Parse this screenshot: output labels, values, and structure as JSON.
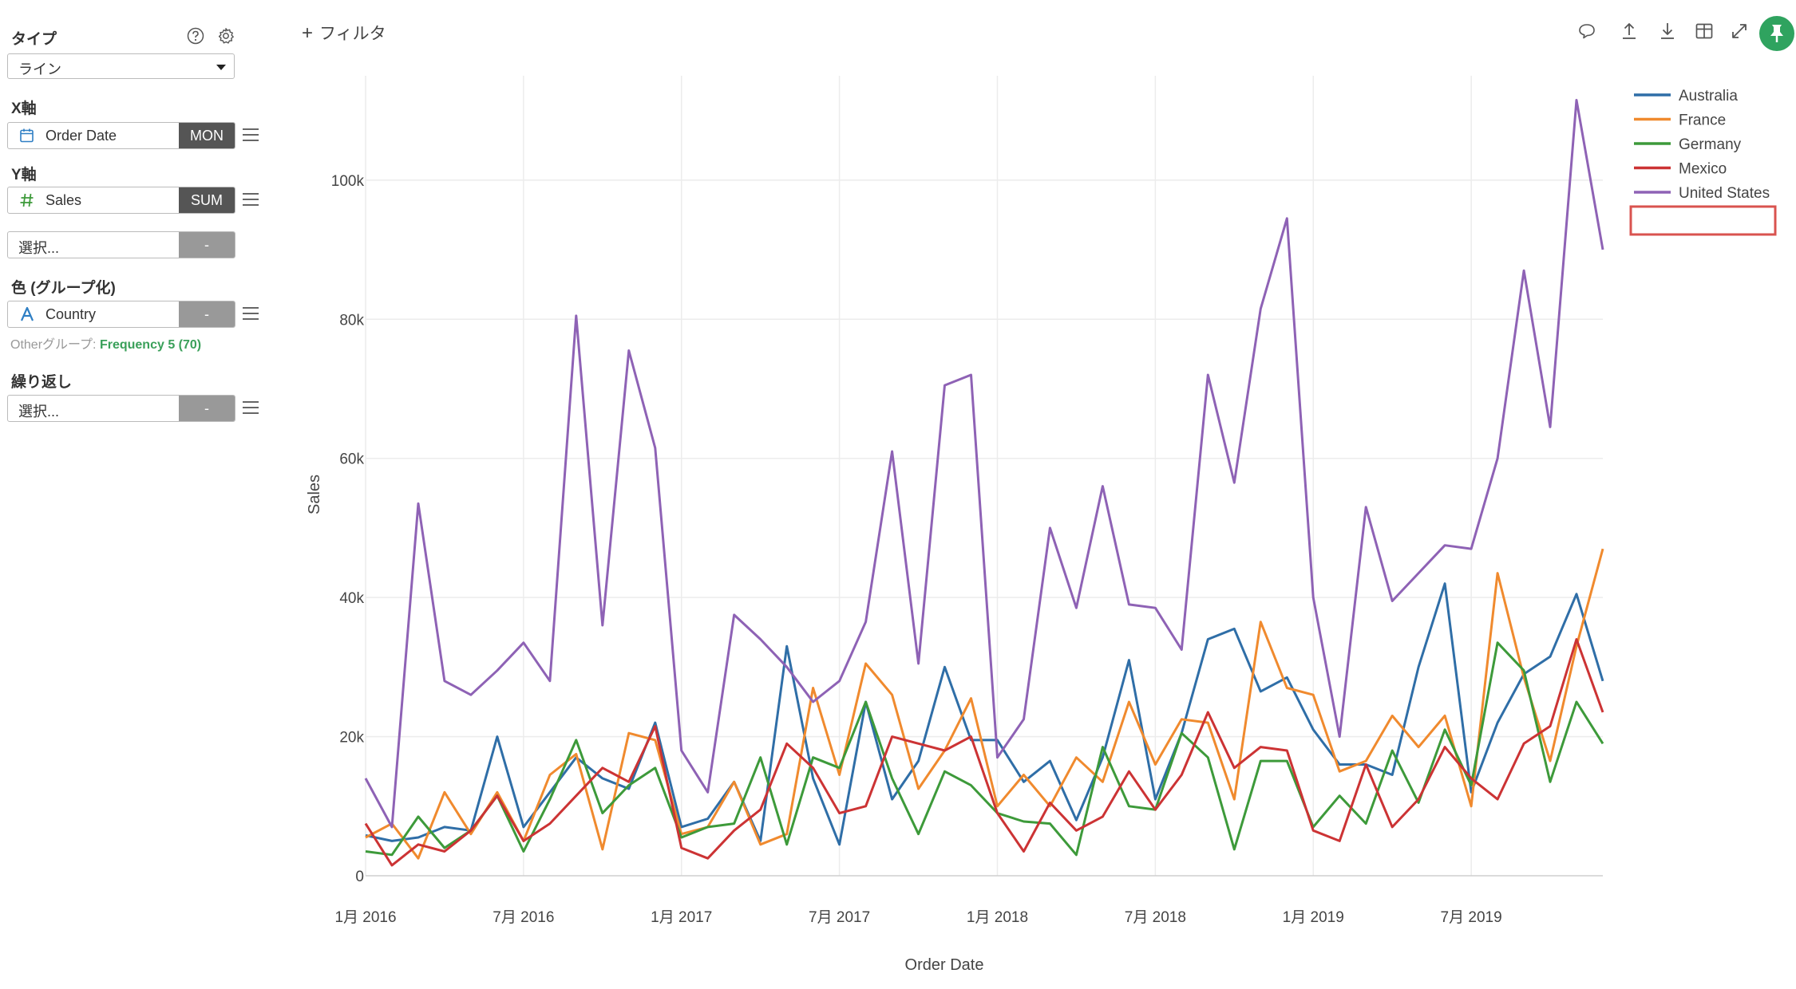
{
  "panel": {
    "type_label": "タイプ",
    "type_value": "ライン",
    "x_label": "X軸",
    "x_field": "Order Date",
    "x_agg": "MON",
    "y_label": "Y軸",
    "y_field": "Sales",
    "y_agg": "SUM",
    "extra_select": "選択...",
    "extra_agg": "-",
    "color_label": "色 (グループ化)",
    "color_field": "Country",
    "color_agg": "-",
    "other_prefix": "Otherグループ: ",
    "other_value": "Frequency 5 (70)",
    "repeat_label": "繰り返し",
    "repeat_select": "選択...",
    "repeat_agg": "-"
  },
  "toolbar": {
    "filter_plus": "+",
    "filter_label": "フィルタ",
    "icons": [
      "comment-icon",
      "upload-icon",
      "download-icon",
      "table-icon",
      "expand-icon",
      "pin-icon"
    ],
    "pin_color": "#2fa35f"
  },
  "chart_data": {
    "type": "line",
    "xlabel": "Order Date",
    "ylabel": "Sales",
    "ylim": [
      0,
      115000
    ],
    "y_ticks": [
      0,
      20000,
      40000,
      60000,
      80000,
      100000
    ],
    "y_tick_labels": [
      "0",
      "20k",
      "40k",
      "60k",
      "80k",
      "100k"
    ],
    "x_tick_labels": [
      "1月 2016",
      "7月 2016",
      "1月 2017",
      "7月 2017",
      "1月 2018",
      "7月 2018",
      "1月 2019",
      "7月 2019"
    ],
    "grid": true,
    "legend": "top-right",
    "x": [
      "2016-01",
      "2016-02",
      "2016-03",
      "2016-04",
      "2016-05",
      "2016-06",
      "2016-07",
      "2016-08",
      "2016-09",
      "2016-10",
      "2016-11",
      "2016-12",
      "2017-01",
      "2017-02",
      "2017-03",
      "2017-04",
      "2017-05",
      "2017-06",
      "2017-07",
      "2017-08",
      "2017-09",
      "2017-10",
      "2017-11",
      "2017-12",
      "2018-01",
      "2018-02",
      "2018-03",
      "2018-04",
      "2018-05",
      "2018-06",
      "2018-07",
      "2018-08",
      "2018-09",
      "2018-10",
      "2018-11",
      "2018-12",
      "2019-01",
      "2019-02",
      "2019-03",
      "2019-04",
      "2019-05",
      "2019-06",
      "2019-07",
      "2019-08",
      "2019-09",
      "2019-10",
      "2019-11",
      "2019-12"
    ],
    "series": [
      {
        "name": "Australia",
        "color": "#2f6ea7",
        "values": [
          5800,
          5000,
          5500,
          7000,
          6500,
          20000,
          7000,
          12000,
          17000,
          14000,
          12500,
          22000,
          7000,
          8200,
          13500,
          5000,
          33000,
          14000,
          4500,
          25000,
          11000,
          16500,
          30000,
          19500,
          19500,
          13500,
          16500,
          8000,
          17000,
          31000,
          11000,
          20500,
          34000,
          35500,
          26500,
          28500,
          21000,
          16000,
          16000,
          14500,
          30000,
          42000,
          12000,
          22000,
          29000,
          31500,
          40500,
          28000
        ]
      },
      {
        "name": "France",
        "color": "#f08a2e",
        "values": [
          5500,
          7500,
          2500,
          12000,
          6000,
          12000,
          5000,
          14500,
          17500,
          3800,
          20500,
          19500,
          6000,
          7000,
          13500,
          4500,
          6000,
          27000,
          14500,
          30500,
          26000,
          12500,
          18000,
          25500,
          10000,
          14500,
          10000,
          17000,
          13500,
          25000,
          16000,
          22500,
          22000,
          11000,
          36500,
          27000,
          26000,
          15000,
          16500,
          23000,
          18500,
          23000,
          10000,
          43500,
          28500,
          16500,
          33000,
          47000
        ]
      },
      {
        "name": "Germany",
        "color": "#3d9a3a",
        "values": [
          3500,
          3000,
          8500,
          4000,
          6500,
          11500,
          3500,
          11000,
          19500,
          9000,
          13000,
          15500,
          5500,
          7000,
          7500,
          17000,
          4500,
          17000,
          15500,
          25000,
          14000,
          6000,
          15000,
          13000,
          9000,
          7800,
          7500,
          3000,
          18500,
          10000,
          9500,
          20500,
          17000,
          3800,
          16500,
          16500,
          7000,
          11500,
          7500,
          18000,
          10500,
          21000,
          13000,
          33500,
          29500,
          13500,
          25000,
          19000
        ]
      },
      {
        "name": "Mexico",
        "color": "#cc3334",
        "values": [
          7500,
          1500,
          4500,
          3500,
          6500,
          11500,
          5000,
          7500,
          11500,
          15500,
          13500,
          21500,
          4000,
          2500,
          6500,
          9500,
          19000,
          15500,
          9000,
          10000,
          20000,
          19000,
          18000,
          20000,
          9000,
          3500,
          10500,
          6500,
          8500,
          15000,
          9500,
          14500,
          23500,
          15500,
          18500,
          18000,
          6500,
          5000,
          16000,
          7000,
          11000,
          18500,
          14000,
          11000,
          19000,
          21500,
          34000,
          23500
        ]
      },
      {
        "name": "United States",
        "color": "#8e62b5",
        "values": [
          14000,
          7000,
          53500,
          28000,
          26000,
          29500,
          33500,
          28000,
          80500,
          36000,
          75500,
          61500,
          18000,
          12000,
          37500,
          34000,
          30000,
          25000,
          28000,
          36500,
          61000,
          30500,
          70500,
          72000,
          17000,
          22500,
          50000,
          38500,
          56000,
          39000,
          38500,
          32500,
          72000,
          56500,
          81500,
          94500,
          40000,
          20000,
          53000,
          39500,
          43500,
          47500,
          47000,
          60000,
          87000,
          64500,
          111500,
          90000
        ]
      }
    ]
  }
}
